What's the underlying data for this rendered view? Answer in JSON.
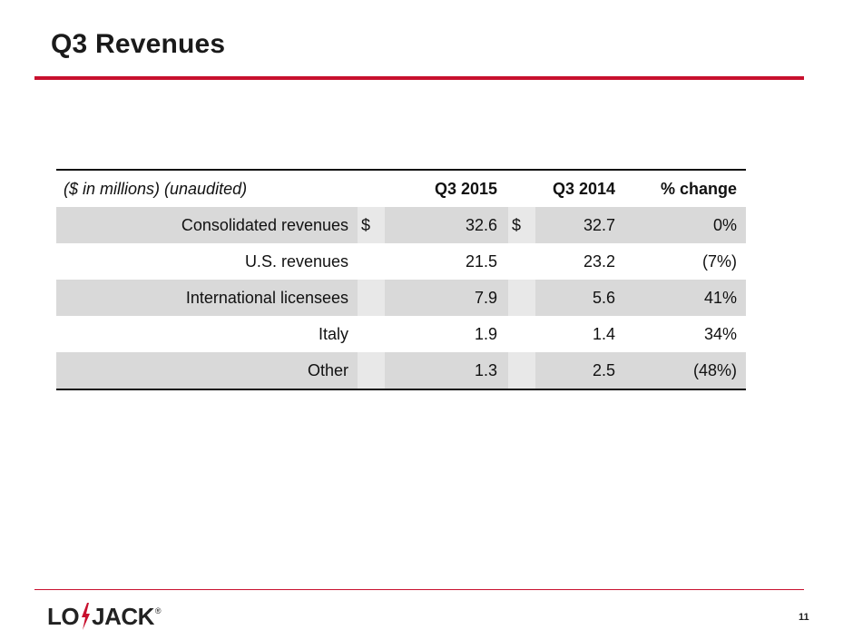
{
  "slide": {
    "title": "Q3 Revenues",
    "page_number": "11",
    "accent_color": "#c8102e"
  },
  "logo": {
    "left": "LO",
    "right": "JACK",
    "registered": "®"
  },
  "table": {
    "header": {
      "label": "($ in millions) (unaudited)",
      "col1": "Q3 2015",
      "col2": "Q3 2014",
      "col3": "% change"
    },
    "rows": [
      {
        "label": "Consolidated revenues",
        "cur1": "$",
        "v1": "32.6",
        "cur2": "$",
        "v2": "32.7",
        "pct": "0%"
      },
      {
        "label": "U.S. revenues",
        "cur1": "",
        "v1": "21.5",
        "cur2": "",
        "v2": "23.2",
        "pct": "(7%)"
      },
      {
        "label": "International licensees",
        "cur1": "",
        "v1": "7.9",
        "cur2": "",
        "v2": "5.6",
        "pct": "41%"
      },
      {
        "label": "Italy",
        "cur1": "",
        "v1": "1.9",
        "cur2": "",
        "v2": "1.4",
        "pct": "34%"
      },
      {
        "label": "Other",
        "cur1": "",
        "v1": "1.3",
        "cur2": "",
        "v2": "2.5",
        "pct": "(48%)"
      }
    ]
  }
}
